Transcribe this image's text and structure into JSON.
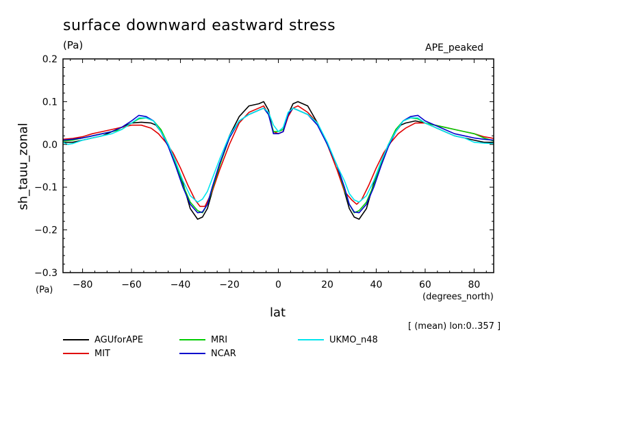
{
  "header": {
    "title": "surface downward eastward stress",
    "units": "(Pa)",
    "experiment": "APE_peaked"
  },
  "axes": {
    "y_unit_bottom": "(Pa)",
    "x_unit": "(degrees_north)",
    "note": "[ (mean) lon:0..357 ]"
  },
  "chart_data": {
    "type": "line",
    "title": "surface downward eastward stress",
    "xlabel": "lat",
    "ylabel": "sh_tauu_zonal",
    "xlim": [
      -88,
      88
    ],
    "ylim": [
      -0.3,
      0.2
    ],
    "xticks": [
      -80,
      -60,
      -40,
      -20,
      0,
      20,
      40,
      60,
      80
    ],
    "yticks": [
      -0.3,
      -0.2,
      -0.1,
      0.0,
      0.1,
      0.2
    ],
    "ytick_labels": [
      "−0.3",
      "−0.2",
      "−0.1",
      "0.0",
      "0.1",
      "0.2"
    ],
    "xtick_labels": [
      "−80",
      "−60",
      "−40",
      "−20",
      "0",
      "20",
      "40",
      "60",
      "80"
    ],
    "grid": false,
    "legend_position": "bottom",
    "series": [
      {
        "name": "AGUforAPE",
        "color": "#000000",
        "x": [
          -88,
          -84,
          -80,
          -76,
          -72,
          -68,
          -64,
          -60,
          -56,
          -52,
          -50,
          -48,
          -45,
          -42,
          -39,
          -36,
          -33,
          -31,
          -29,
          -27,
          -24,
          -20,
          -16,
          -12,
          -8,
          -6,
          -4,
          -2,
          0,
          2,
          4,
          6,
          8,
          12,
          16,
          20,
          24,
          27,
          29,
          31,
          33,
          36,
          39,
          42,
          45,
          48,
          50,
          52,
          56,
          60,
          64,
          68,
          72,
          76,
          80,
          84,
          88
        ],
        "y": [
          0.005,
          0.005,
          0.01,
          0.015,
          0.02,
          0.03,
          0.04,
          0.05,
          0.052,
          0.05,
          0.045,
          0.03,
          0.0,
          -0.04,
          -0.09,
          -0.15,
          -0.175,
          -0.17,
          -0.15,
          -0.11,
          -0.05,
          0.02,
          0.065,
          0.09,
          0.095,
          0.1,
          0.08,
          0.025,
          0.025,
          0.03,
          0.07,
          0.095,
          0.1,
          0.09,
          0.05,
          0.0,
          -0.05,
          -0.11,
          -0.15,
          -0.17,
          -0.175,
          -0.15,
          -0.09,
          -0.04,
          0.0,
          0.03,
          0.045,
          0.05,
          0.055,
          0.05,
          0.04,
          0.03,
          0.02,
          0.015,
          0.01,
          0.005,
          0.005
        ]
      },
      {
        "name": "MIT",
        "color": "#e00000",
        "x": [
          -88,
          -84,
          -80,
          -76,
          -72,
          -68,
          -64,
          -60,
          -56,
          -52,
          -49,
          -46,
          -43,
          -40,
          -37,
          -34,
          -32,
          -30,
          -27,
          -24,
          -20,
          -16,
          -12,
          -8,
          -6,
          -4,
          -2,
          0,
          2,
          4,
          6,
          8,
          12,
          16,
          20,
          24,
          27,
          30,
          32,
          34,
          37,
          40,
          43,
          46,
          49,
          52,
          56,
          60,
          64,
          68,
          72,
          76,
          80,
          84,
          88
        ],
        "y": [
          0.012,
          0.014,
          0.018,
          0.025,
          0.03,
          0.035,
          0.04,
          0.045,
          0.045,
          0.038,
          0.025,
          0.005,
          -0.02,
          -0.055,
          -0.095,
          -0.13,
          -0.145,
          -0.145,
          -0.11,
          -0.06,
          0.0,
          0.05,
          0.075,
          0.085,
          0.09,
          0.07,
          0.03,
          0.025,
          0.03,
          0.065,
          0.085,
          0.09,
          0.075,
          0.05,
          0.0,
          -0.06,
          -0.11,
          -0.13,
          -0.14,
          -0.13,
          -0.095,
          -0.055,
          -0.02,
          0.005,
          0.025,
          0.038,
          0.05,
          0.05,
          0.045,
          0.04,
          0.035,
          0.03,
          0.025,
          0.018,
          0.014
        ]
      },
      {
        "name": "MRI",
        "color": "#00cc00",
        "x": [
          -88,
          -84,
          -80,
          -76,
          -72,
          -68,
          -64,
          -60,
          -57,
          -54,
          -51,
          -48,
          -45,
          -42,
          -39,
          -36,
          -33,
          -31,
          -29,
          -27,
          -24,
          -20,
          -16,
          -12,
          -8,
          -6,
          -4,
          -2,
          0,
          2,
          4,
          6,
          8,
          12,
          16,
          20,
          24,
          27,
          29,
          31,
          33,
          36,
          39,
          42,
          45,
          48,
          51,
          54,
          57,
          60,
          64,
          68,
          72,
          76,
          80,
          84,
          88
        ],
        "y": [
          0.008,
          0.01,
          0.015,
          0.02,
          0.025,
          0.03,
          0.035,
          0.05,
          0.06,
          0.062,
          0.055,
          0.035,
          0.0,
          -0.045,
          -0.095,
          -0.135,
          -0.155,
          -0.16,
          -0.14,
          -0.105,
          -0.05,
          0.015,
          0.055,
          0.07,
          0.08,
          0.085,
          0.07,
          0.03,
          0.03,
          0.035,
          0.07,
          0.085,
          0.08,
          0.07,
          0.05,
          0.0,
          -0.05,
          -0.105,
          -0.14,
          -0.16,
          -0.155,
          -0.135,
          -0.095,
          -0.045,
          0.0,
          0.035,
          0.055,
          0.062,
          0.06,
          0.05,
          0.045,
          0.04,
          0.035,
          0.03,
          0.025,
          0.015,
          0.008
        ]
      },
      {
        "name": "NCAR",
        "color": "#0000cc",
        "x": [
          -88,
          -84,
          -80,
          -76,
          -72,
          -68,
          -64,
          -60,
          -57,
          -54,
          -51,
          -48,
          -45,
          -42,
          -39,
          -36,
          -33,
          -31,
          -29,
          -27,
          -24,
          -20,
          -16,
          -12,
          -8,
          -6,
          -4,
          -2,
          0,
          2,
          4,
          6,
          8,
          12,
          16,
          20,
          24,
          27,
          29,
          31,
          33,
          36,
          39,
          42,
          45,
          48,
          51,
          54,
          57,
          60,
          64,
          68,
          72,
          76,
          80,
          84,
          88
        ],
        "y": [
          0.01,
          0.012,
          0.015,
          0.02,
          0.025,
          0.03,
          0.04,
          0.055,
          0.068,
          0.065,
          0.055,
          0.03,
          -0.005,
          -0.05,
          -0.1,
          -0.14,
          -0.16,
          -0.158,
          -0.14,
          -0.1,
          -0.045,
          0.015,
          0.055,
          0.07,
          0.08,
          0.085,
          0.07,
          0.025,
          0.025,
          0.03,
          0.07,
          0.085,
          0.08,
          0.07,
          0.045,
          0.0,
          -0.05,
          -0.1,
          -0.14,
          -0.158,
          -0.16,
          -0.14,
          -0.1,
          -0.05,
          -0.005,
          0.03,
          0.055,
          0.065,
          0.068,
          0.055,
          0.045,
          0.035,
          0.025,
          0.02,
          0.015,
          0.012,
          0.01
        ]
      },
      {
        "name": "UKMO_n48",
        "color": "#00e5ee",
        "x": [
          -88,
          -86,
          -84,
          -80,
          -76,
          -72,
          -68,
          -64,
          -60,
          -57,
          -54,
          -51,
          -48,
          -45,
          -42,
          -39,
          -36,
          -33,
          -31,
          -29,
          -27,
          -24,
          -20,
          -16,
          -12,
          -8,
          -6,
          -4,
          -2,
          0,
          2,
          4,
          6,
          8,
          12,
          16,
          20,
          24,
          27,
          29,
          31,
          33,
          36,
          39,
          42,
          45,
          48,
          51,
          54,
          57,
          60,
          64,
          68,
          72,
          76,
          80,
          84,
          88
        ],
        "y": [
          0.005,
          0.0,
          0.002,
          0.01,
          0.015,
          0.02,
          0.025,
          0.035,
          0.05,
          0.062,
          0.062,
          0.055,
          0.03,
          0.0,
          -0.04,
          -0.085,
          -0.12,
          -0.135,
          -0.128,
          -0.11,
          -0.08,
          -0.035,
          0.02,
          0.055,
          0.07,
          0.08,
          0.085,
          0.075,
          0.045,
          0.03,
          0.04,
          0.075,
          0.085,
          0.08,
          0.07,
          0.05,
          0.005,
          -0.05,
          -0.085,
          -0.115,
          -0.13,
          -0.135,
          -0.12,
          -0.085,
          -0.04,
          0.0,
          0.03,
          0.055,
          0.062,
          0.062,
          0.05,
          0.04,
          0.03,
          0.02,
          0.015,
          0.005,
          0.003,
          0.002
        ]
      }
    ]
  }
}
